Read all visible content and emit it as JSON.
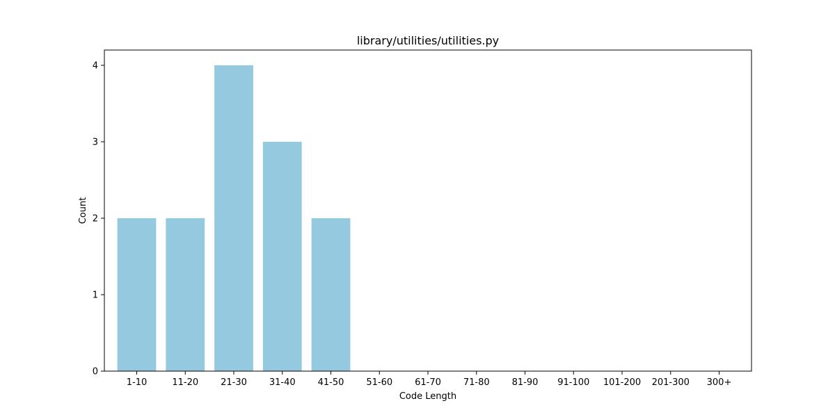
{
  "chart_data": {
    "type": "bar",
    "title": "library/utilities/utilities.py",
    "xlabel": "Code Length",
    "ylabel": "Count",
    "categories": [
      "1-10",
      "11-20",
      "21-30",
      "31-40",
      "41-50",
      "51-60",
      "61-70",
      "71-80",
      "81-90",
      "91-100",
      "101-200",
      "201-300",
      "300+"
    ],
    "values": [
      2,
      2,
      4,
      3,
      2,
      0,
      0,
      0,
      0,
      0,
      0,
      0,
      0
    ],
    "ylim": [
      0,
      4.2
    ],
    "yticks": [
      0,
      1,
      2,
      3,
      4
    ],
    "grid": false,
    "bar_color": "#95c9df"
  }
}
